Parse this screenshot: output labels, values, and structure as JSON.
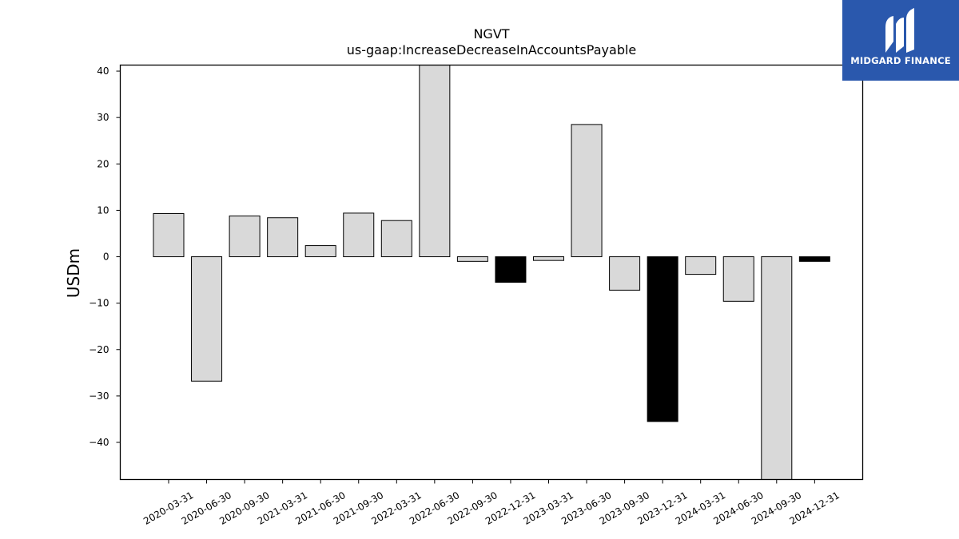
{
  "chart_data": {
    "type": "bar",
    "title": "NGVT",
    "subtitle": "us-gaap:IncreaseDecreaseInAccountsPayable",
    "ylabel": "USDm",
    "xlabel": "",
    "ylim": [
      -48,
      41.3
    ],
    "yticks": [
      40,
      30,
      20,
      10,
      0,
      -10,
      -20,
      -30,
      -40
    ],
    "ytick_labels": [
      "40",
      "30",
      "20",
      "10",
      "0",
      "−10",
      "−20",
      "−30",
      "−40"
    ],
    "categories": [
      "2020-03-31",
      "2020-06-30",
      "2020-09-30",
      "2021-03-31",
      "2021-06-30",
      "2021-09-30",
      "2022-03-31",
      "2022-06-30",
      "2022-09-30",
      "2022-12-31",
      "2023-03-31",
      "2023-06-30",
      "2023-09-30",
      "2023-12-31",
      "2024-03-31",
      "2024-06-30",
      "2024-09-30",
      "2024-12-31"
    ],
    "values": [
      9.3,
      -26.8,
      8.8,
      8.4,
      2.4,
      9.4,
      7.8,
      41.3,
      -1.0,
      -5.5,
      -0.8,
      28.5,
      -7.2,
      -35.5,
      -3.8,
      -9.6,
      -48.0,
      -1.0
    ],
    "highlighted": [
      false,
      false,
      false,
      false,
      false,
      false,
      false,
      false,
      false,
      true,
      false,
      false,
      false,
      true,
      false,
      false,
      false,
      true
    ],
    "colors": {
      "bar": "#d9d9d9",
      "highlight": "#000000",
      "edge": "#000000"
    },
    "grid": false,
    "legend": "none"
  },
  "logo": {
    "text": "MIDGARD FINANCE",
    "background": "#2a58ad"
  }
}
